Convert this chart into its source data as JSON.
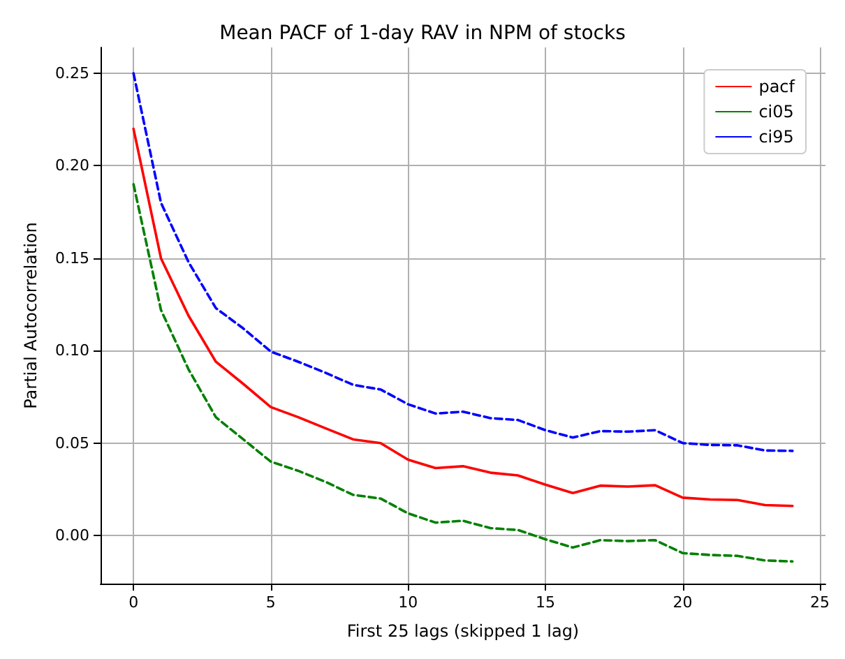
{
  "chart_data": {
    "type": "line",
    "title": "Mean PACF of 1-day RAV in NPM of stocks",
    "xlabel": "First 25 lags (skipped 1 lag)",
    "ylabel": "Partial Autocorrelation",
    "x": [
      0,
      1,
      2,
      3,
      4,
      5,
      6,
      7,
      8,
      9,
      10,
      11,
      12,
      13,
      14,
      15,
      16,
      17,
      18,
      19,
      20,
      21,
      22,
      23,
      24
    ],
    "series": [
      {
        "name": "pacf",
        "color": "#ff0000",
        "line_style": "solid",
        "values": [
          0.22,
          0.15,
          0.119,
          0.094,
          0.082,
          0.0695,
          0.064,
          0.058,
          0.052,
          0.05,
          0.041,
          0.0365,
          0.0375,
          0.034,
          0.0325,
          0.0275,
          0.023,
          0.027,
          0.0265,
          0.0272,
          0.0205,
          0.0195,
          0.0192,
          0.0165,
          0.016
        ]
      },
      {
        "name": "ci05",
        "color": "#008000",
        "line_style": "dashed",
        "values": [
          0.19,
          0.122,
          0.09,
          0.064,
          0.052,
          0.04,
          0.035,
          0.029,
          0.022,
          0.02,
          0.012,
          0.007,
          0.008,
          0.004,
          0.003,
          -0.002,
          -0.0065,
          -0.0025,
          -0.003,
          -0.0025,
          -0.0095,
          -0.0105,
          -0.011,
          -0.0135,
          -0.014
        ]
      },
      {
        "name": "ci95",
        "color": "#0000ff",
        "line_style": "dashed",
        "values": [
          0.25,
          0.18,
          0.148,
          0.123,
          0.112,
          0.0995,
          0.094,
          0.088,
          0.0815,
          0.079,
          0.071,
          0.066,
          0.067,
          0.0635,
          0.0625,
          0.057,
          0.053,
          0.0565,
          0.0562,
          0.057,
          0.05,
          0.049,
          0.0488,
          0.046,
          0.0458
        ]
      }
    ],
    "xlim": [
      -1.2,
      25.2
    ],
    "xticks": [
      0,
      5,
      10,
      15,
      20,
      25
    ],
    "ylim": [
      -0.026,
      0.264
    ],
    "yticks": [
      {
        "value": 0,
        "label": "0.00"
      },
      {
        "value": 0.05,
        "label": "0.05"
      },
      {
        "value": 0.1,
        "label": "0.10"
      },
      {
        "value": 0.15,
        "label": "0.15"
      },
      {
        "value": 0.2,
        "label": "0.20"
      },
      {
        "value": 0.25,
        "label": "0.25"
      }
    ],
    "grid": true,
    "legend": "top right",
    "marker": "none"
  }
}
